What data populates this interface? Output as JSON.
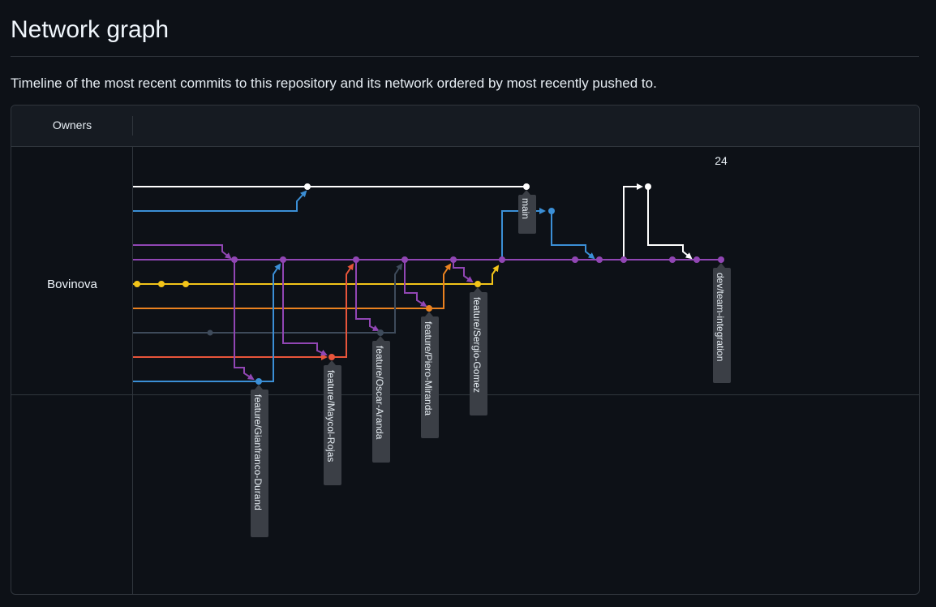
{
  "page": {
    "title": "Network graph",
    "description": "Timeline of the most recent commits to this repository and its network ordered by most recently pushed to."
  },
  "graph": {
    "owners_header": "Owners",
    "owner": "Bovinova",
    "date_label": "24",
    "colors": {
      "white": "#ffffff",
      "blue": "#3b8fd6",
      "purple": "#9146b4",
      "yellow": "#f2c419",
      "orange": "#ea8220",
      "slate": "#3e4b5b",
      "red": "#e8553b",
      "label_bg": "#3b3f46"
    },
    "branches": [
      "main",
      "feature/Gianfranco-Durand",
      "feature/Maycol-Rojas",
      "feature/Oscar-Aranda",
      "feature/Piero-Miranda",
      "feature/Sergio-Gomez",
      "dev/team-integration"
    ]
  }
}
